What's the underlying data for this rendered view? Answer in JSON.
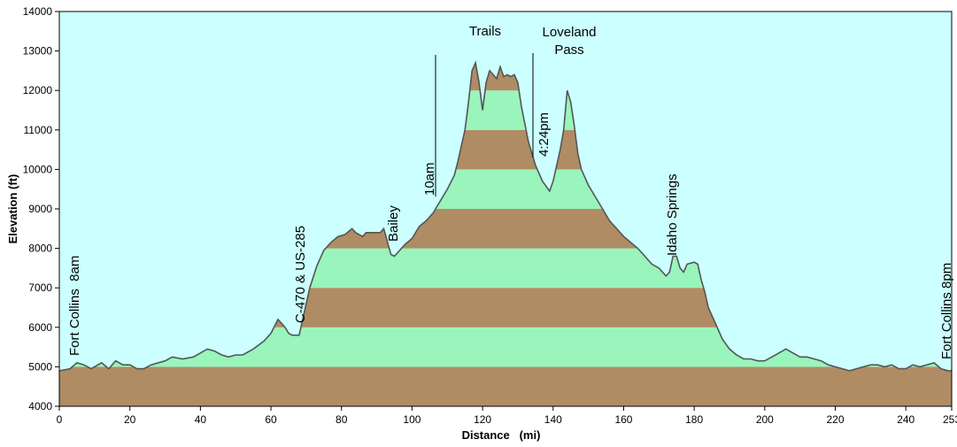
{
  "chart_data": {
    "type": "area",
    "xlabel": "Distance   (mi)",
    "ylabel": "Elevation (ft)",
    "xlim": [
      0,
      253
    ],
    "ylim": [
      4000,
      14000
    ],
    "x_ticks": [
      "0",
      "20",
      "40",
      "60",
      "80",
      "100",
      "120",
      "140",
      "160",
      "180",
      "200",
      "220",
      "240",
      "253"
    ],
    "y_ticks": [
      "4000",
      "5000",
      "6000",
      "7000",
      "8000",
      "9000",
      "10000",
      "11000",
      "12000",
      "13000",
      "14000"
    ],
    "band_interval": 1000,
    "colors": {
      "plot_bg": "#ccffff",
      "band_brown": "#b08c64",
      "band_green": "#99f5bb",
      "profile_line": "#555555"
    },
    "series": [
      {
        "x": [
          0,
          3,
          5,
          7,
          9,
          12,
          14,
          16,
          18,
          20,
          22,
          24,
          26,
          30,
          32,
          35,
          38,
          40,
          42,
          44,
          46,
          48,
          50,
          52,
          55,
          58,
          60,
          62,
          63,
          64,
          65,
          66,
          68,
          69,
          70,
          71,
          73,
          75,
          77,
          79,
          81,
          83,
          84,
          86,
          87,
          89,
          91,
          92,
          94,
          95,
          98,
          100,
          102,
          104,
          106,
          108,
          110,
          112,
          113,
          114,
          115,
          116,
          117,
          118,
          119,
          120,
          121,
          122,
          123,
          124,
          125,
          126,
          127,
          128,
          129,
          130,
          131,
          133,
          135,
          137,
          139,
          140,
          142,
          143,
          144,
          145,
          146,
          147,
          148,
          150,
          152,
          154,
          156,
          158,
          160,
          162,
          164,
          166,
          168,
          170,
          172,
          173,
          174,
          175,
          176,
          177,
          178,
          180,
          181,
          182,
          183,
          184,
          186,
          188,
          190,
          192,
          194,
          196,
          198,
          200,
          202,
          204,
          206,
          208,
          210,
          212,
          214,
          216,
          218,
          220,
          222,
          224,
          226,
          228,
          230,
          232,
          234,
          236,
          238,
          240,
          242,
          244,
          246,
          248,
          250,
          252,
          253
        ],
        "y": [
          4900,
          4950,
          5100,
          5050,
          4950,
          5100,
          4950,
          5150,
          5050,
          5050,
          4950,
          4950,
          5050,
          5150,
          5250,
          5200,
          5250,
          5350,
          5450,
          5400,
          5300,
          5250,
          5300,
          5300,
          5450,
          5650,
          5850,
          6200,
          6100,
          6000,
          5850,
          5800,
          5800,
          6200,
          6600,
          7000,
          7550,
          7950,
          8150,
          8300,
          8350,
          8500,
          8400,
          8300,
          8400,
          8400,
          8400,
          8500,
          7850,
          7800,
          8100,
          8250,
          8550,
          8700,
          8900,
          9200,
          9500,
          9850,
          10200,
          10600,
          11000,
          11700,
          12500,
          12700,
          12200,
          11500,
          12200,
          12500,
          12400,
          12300,
          12600,
          12350,
          12400,
          12350,
          12400,
          12200,
          11600,
          10700,
          10100,
          9700,
          9450,
          9700,
          10500,
          11000,
          12000,
          11700,
          11100,
          10400,
          10000,
          9600,
          9300,
          9000,
          8700,
          8500,
          8300,
          8150,
          8000,
          7800,
          7600,
          7500,
          7300,
          7400,
          7800,
          7800,
          7500,
          7400,
          7600,
          7650,
          7600,
          7200,
          6900,
          6500,
          6100,
          5700,
          5450,
          5300,
          5200,
          5200,
          5150,
          5150,
          5250,
          5350,
          5450,
          5350,
          5250,
          5250,
          5200,
          5150,
          5050,
          5000,
          4950,
          4900,
          4950,
          5000,
          5050,
          5050,
          5000,
          5050,
          4950,
          4950,
          5050,
          5000,
          5050,
          5100,
          4950,
          4900,
          4900
        ]
      }
    ],
    "annotations": [
      {
        "id": "fort-collins-start",
        "text": "Fort Collins  8am"
      },
      {
        "id": "c470",
        "text": "C-470 & US-285"
      },
      {
        "id": "bailey",
        "text": "Bailey"
      },
      {
        "id": "10am",
        "text": "10am"
      },
      {
        "id": "trails",
        "text": "Trails"
      },
      {
        "id": "424pm",
        "text": "4:24pm"
      },
      {
        "id": "loveland-1",
        "text": "Loveland"
      },
      {
        "id": "loveland-2",
        "text": "Pass"
      },
      {
        "id": "idaho",
        "text": "Idaho Springs"
      },
      {
        "id": "fort-collins-end",
        "text": "Fort Collins 8pm"
      }
    ]
  }
}
